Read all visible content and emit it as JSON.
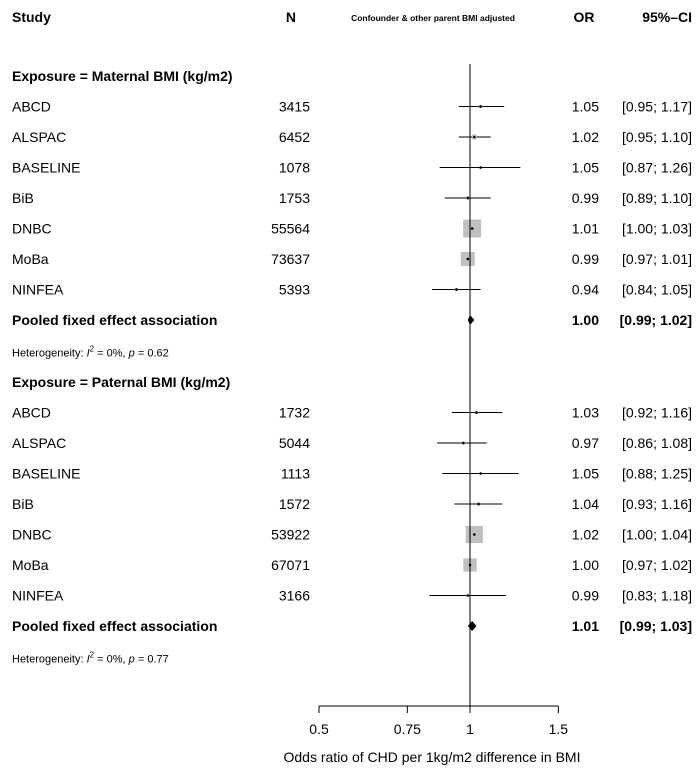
{
  "header": {
    "study": "Study",
    "n": "N",
    "adjusted": "Confounder & other parent BMI adjusted",
    "or": "OR",
    "ci": "95%–CI"
  },
  "chart_data": {
    "type": "forest",
    "xlabel": "Odds ratio of CHD per 1kg/m2 difference in BMI",
    "xlim": [
      0.5,
      1.5
    ],
    "x_ticks": [
      0.5,
      0.75,
      1,
      1.5
    ],
    "x_tick_labels": [
      "0.5",
      "0.75",
      "1",
      "1.5"
    ],
    "reference_line": 1,
    "groups": [
      {
        "title": "Exposure = Maternal BMI (kg/m2)",
        "studies": [
          {
            "study": "ABCD",
            "n": "3415",
            "or": 1.05,
            "lower": 0.95,
            "upper": 1.17,
            "or_text": "1.05",
            "ci_text": "[0.95; 1.17]",
            "weight": 0.02
          },
          {
            "study": "ALSPAC",
            "n": "6452",
            "or": 1.02,
            "lower": 0.95,
            "upper": 1.1,
            "or_text": "1.02",
            "ci_text": "[0.95; 1.10]",
            "weight": 0.04
          },
          {
            "study": "BASELINE",
            "n": "1078",
            "or": 1.05,
            "lower": 0.87,
            "upper": 1.26,
            "or_text": "1.05",
            "ci_text": "[0.87; 1.26]",
            "weight": 0.01
          },
          {
            "study": "BiB",
            "n": "1753",
            "or": 0.99,
            "lower": 0.89,
            "upper": 1.1,
            "or_text": "0.99",
            "ci_text": "[0.89; 1.10]",
            "weight": 0.02
          },
          {
            "study": "DNBC",
            "n": "55564",
            "or": 1.01,
            "lower": 1.0,
            "upper": 1.03,
            "or_text": "1.01",
            "ci_text": "[1.00; 1.03]",
            "weight": 0.55
          },
          {
            "study": "MoBa",
            "n": "73637",
            "or": 0.99,
            "lower": 0.97,
            "upper": 1.01,
            "or_text": "0.99",
            "ci_text": "[0.97; 1.01]",
            "weight": 0.33
          },
          {
            "study": "NINFEA",
            "n": "5393",
            "or": 0.94,
            "lower": 0.84,
            "upper": 1.05,
            "or_text": "0.94",
            "ci_text": "[0.84; 1.05]",
            "weight": 0.02
          }
        ],
        "pooled": {
          "label": "Pooled fixed effect association",
          "or": 1.0,
          "lower": 0.99,
          "upper": 1.02,
          "or_text": "1.00",
          "ci_text": "[0.99; 1.02]"
        },
        "heterogeneity": {
          "prefix": "Heterogeneity: ",
          "i_letter": "I",
          "sup": "2",
          "i2_text": " = 0%, ",
          "p_letter": "p",
          "p_text": " = 0.62"
        }
      },
      {
        "title": "Exposure = Paternal BMI (kg/m2)",
        "studies": [
          {
            "study": "ABCD",
            "n": "1732",
            "or": 1.03,
            "lower": 0.92,
            "upper": 1.16,
            "or_text": "1.03",
            "ci_text": "[0.92; 1.16]",
            "weight": 0.02
          },
          {
            "study": "ALSPAC",
            "n": "5044",
            "or": 0.97,
            "lower": 0.86,
            "upper": 1.08,
            "or_text": "0.97",
            "ci_text": "[0.86; 1.08]",
            "weight": 0.02
          },
          {
            "study": "BASELINE",
            "n": "1113",
            "or": 1.05,
            "lower": 0.88,
            "upper": 1.25,
            "or_text": "1.05",
            "ci_text": "[0.88; 1.25]",
            "weight": 0.01
          },
          {
            "study": "BiB",
            "n": "1572",
            "or": 1.04,
            "lower": 0.93,
            "upper": 1.16,
            "or_text": "1.04",
            "ci_text": "[0.93; 1.16]",
            "weight": 0.02
          },
          {
            "study": "DNBC",
            "n": "53922",
            "or": 1.02,
            "lower": 1.0,
            "upper": 1.04,
            "or_text": "1.02",
            "ci_text": "[1.00; 1.04]",
            "weight": 0.5
          },
          {
            "study": "MoBa",
            "n": "67071",
            "or": 1.0,
            "lower": 0.97,
            "upper": 1.02,
            "or_text": "1.00",
            "ci_text": "[0.97; 1.02]",
            "weight": 0.3
          },
          {
            "study": "NINFEA",
            "n": "3166",
            "or": 0.99,
            "lower": 0.83,
            "upper": 1.18,
            "or_text": "0.99",
            "ci_text": "[0.83; 1.18]",
            "weight": 0.01
          }
        ],
        "pooled": {
          "label": "Pooled fixed effect association",
          "or": 1.01,
          "lower": 0.99,
          "upper": 1.03,
          "or_text": "1.01",
          "ci_text": "[0.99; 1.03]"
        },
        "heterogeneity": {
          "prefix": "Heterogeneity: ",
          "i_letter": "I",
          "sup": "2",
          "i2_text": " = 0%, ",
          "p_letter": "p",
          "p_text": " = 0.77"
        }
      }
    ]
  },
  "colors": {
    "square": "#c0c0c0",
    "line": "#000000"
  }
}
